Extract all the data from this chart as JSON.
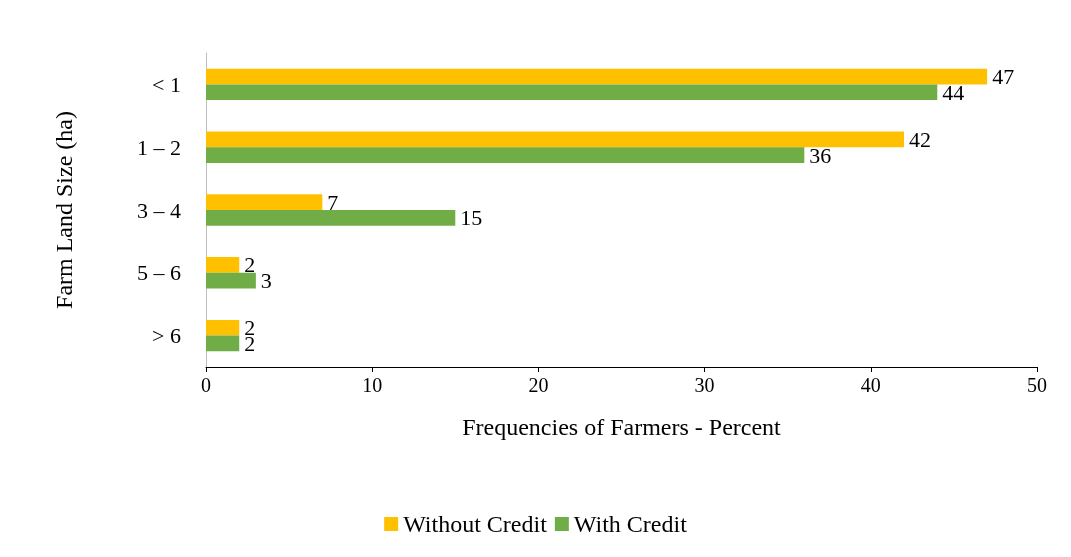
{
  "chart_data": {
    "type": "bar",
    "orientation": "horizontal",
    "xlabel": "Frequencies of Farmers - Percent",
    "ylabel": "Farm Land Size (ha)",
    "categories": [
      "< 1",
      "1 – 2",
      "3 – 4",
      "5 – 6",
      "> 6"
    ],
    "series": [
      {
        "name": "Without Credit",
        "color": "#ffc000",
        "values": [
          47,
          42,
          7,
          2,
          2
        ]
      },
      {
        "name": "With Credit",
        "color": "#70ad47",
        "values": [
          44,
          36,
          15,
          3,
          2
        ]
      }
    ],
    "xlim": [
      0,
      50
    ],
    "xticks": [
      0,
      10,
      20,
      30,
      40,
      50
    ],
    "grid": false,
    "legend": "bottom",
    "data_labels": true
  }
}
